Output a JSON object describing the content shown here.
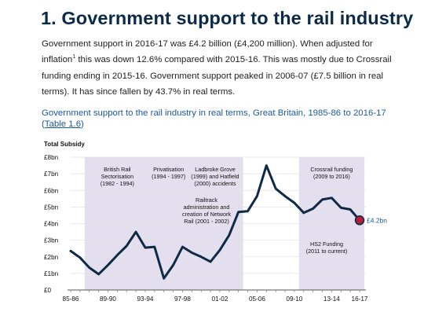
{
  "page": {
    "heading": "1.  Government support to the rail industry",
    "para_part1": "Government support in 2016-17 was £4.2 billion (£4,200 million). When adjusted for inflation",
    "para_footnote": "1",
    "para_part2": " this was down 12.6% compared with 2015-16. This was mostly due to Crossrail funding ending in 2015-16. Government support peaked in 2006-07 (£7.5 billion in real terms). It has since fallen by 43.7% in real terms.",
    "caption_text": "Government support to the rail industry in real terms, Great Britain, 1985-86 to 2016-17 ",
    "caption_link_open": "(",
    "caption_link": "Table 1.6",
    "caption_link_close": ")"
  },
  "colors": {
    "line": "#0e2a45",
    "band": "#e4dfee",
    "end_marker": "#b21d3c",
    "end_label": "#1c5aa3",
    "grid": "#e2e2e2"
  },
  "chart_data": {
    "type": "line",
    "ylabel": "Total Subsidy",
    "ylim": [
      0,
      8
    ],
    "y_ticks": [
      "£0",
      "£1bn",
      "£2bn",
      "£3bn",
      "£4bn",
      "£5bn",
      "£6bn",
      "£7bn",
      "£8bn"
    ],
    "x_tick_labels": [
      "85-86",
      "89-90",
      "93-94",
      "97-98",
      "01-02",
      "05-06",
      "09-10",
      "13-14",
      "16-17"
    ],
    "x_tick_years": [
      1985,
      1989,
      1993,
      1997,
      2001,
      2005,
      2009,
      2013,
      2016
    ],
    "xlim": [
      1985,
      2016
    ],
    "grid": "horizontal",
    "series": [
      {
        "x": [
          1985,
          1986,
          1987,
          1988,
          1989,
          1990,
          1991,
          1992,
          1993,
          1994,
          1995,
          1996,
          1997,
          1998,
          1999,
          2000,
          2001,
          2002,
          2003,
          2004,
          2005,
          2006,
          2007,
          2008,
          2009,
          2010,
          2011,
          2012,
          2013,
          2014,
          2015,
          2016
        ],
        "values": [
          2.35,
          1.95,
          1.35,
          0.95,
          1.5,
          2.1,
          2.65,
          3.5,
          2.55,
          2.6,
          0.7,
          1.5,
          2.6,
          2.25,
          2.0,
          1.7,
          2.4,
          3.3,
          4.7,
          4.75,
          5.65,
          7.5,
          6.1,
          5.65,
          5.25,
          4.65,
          4.9,
          5.45,
          5.55,
          4.95,
          4.85,
          4.2
        ]
      }
    ],
    "bands": [
      {
        "start": 1986.5,
        "end": 1993.5,
        "lines": [
          "British Rail",
          "Sectorisation",
          "(1982 - 1994)"
        ]
      },
      {
        "start": 1993.5,
        "end": 1997.5,
        "lines": [
          "Privatisation",
          "(1994 - 1997)"
        ]
      },
      {
        "start": 1997.5,
        "end": 2003.5,
        "lines": [
          "Ladbroke Grove",
          "(1999) and Hatfield",
          "(2000) accidents"
        ]
      },
      {
        "start": 2009.5,
        "end": 2016.5,
        "lines": [
          "Crossrail funding",
          "(2009 to 2016)"
        ]
      }
    ],
    "annotations": [
      {
        "lines": [
          "Railtrack",
          "administration and",
          "creation of Network",
          "Rail (2001 - 2002)"
        ]
      },
      {
        "lines": [
          "HS2 Funding",
          "(2011 to current)"
        ]
      }
    ],
    "end_label": "£4.2bn"
  }
}
